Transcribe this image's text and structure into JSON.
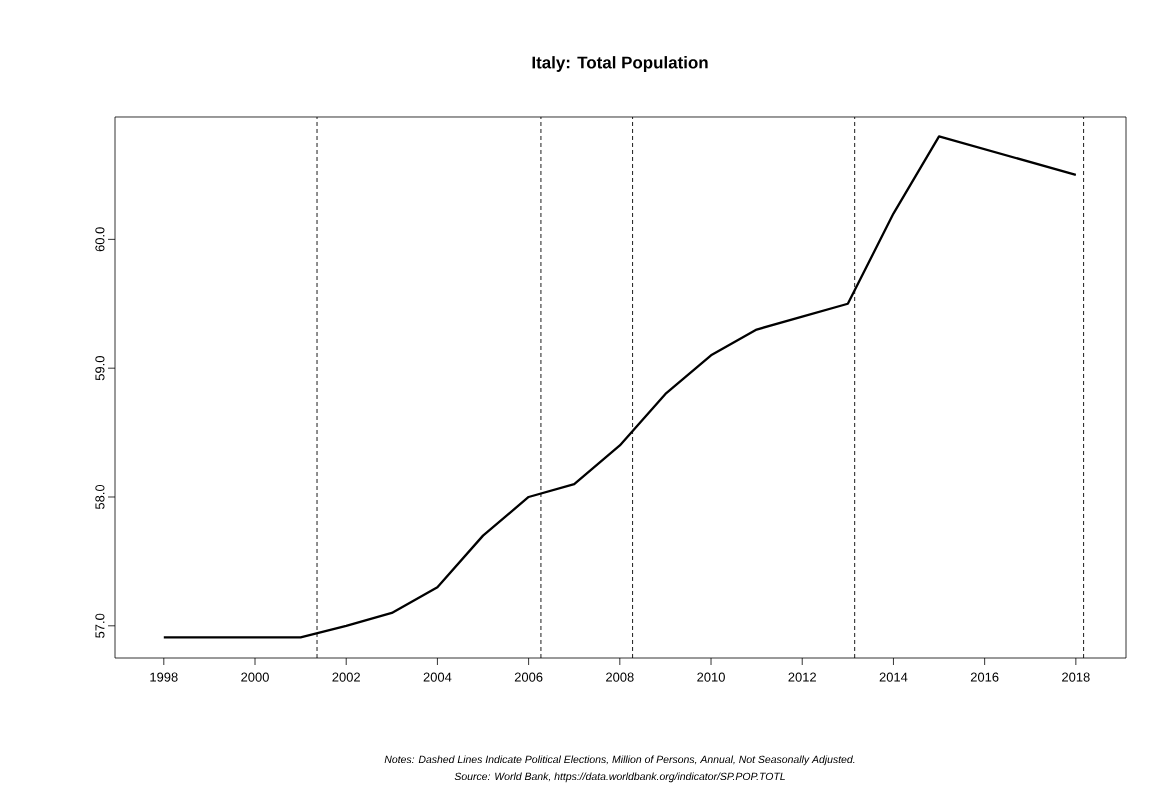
{
  "chart_data": {
    "type": "line",
    "title": "Italy: Total Population",
    "x": [
      1998,
      1999,
      2000,
      2001,
      2002,
      2003,
      2004,
      2005,
      2006,
      2007,
      2008,
      2009,
      2010,
      2011,
      2012,
      2013,
      2014,
      2015,
      2018
    ],
    "values": [
      56.91,
      56.91,
      56.91,
      56.91,
      57.0,
      57.1,
      57.3,
      57.7,
      58.0,
      58.1,
      58.4,
      58.8,
      59.1,
      59.3,
      59.4,
      59.5,
      60.2,
      60.8,
      60.5
    ],
    "color": "#000000",
    "xlim": [
      1996.93,
      2019.1
    ],
    "ylim": [
      56.75,
      60.95
    ],
    "xticks": [
      1998,
      2000,
      2002,
      2004,
      2006,
      2008,
      2010,
      2012,
      2014,
      2016,
      2018
    ],
    "yticks": [
      {
        "value": 57,
        "label": "57.0"
      },
      {
        "value": 58,
        "label": "58.0"
      },
      {
        "value": 59,
        "label": "59.0"
      },
      {
        "value": 60,
        "label": "60.0"
      }
    ],
    "ref_lines": [
      {
        "axis": "x",
        "value": 2001.36,
        "line_style": "dashed"
      },
      {
        "axis": "x",
        "value": 2006.27,
        "line_style": "dashed"
      },
      {
        "axis": "x",
        "value": 2008.28,
        "line_style": "dashed"
      },
      {
        "axis": "x",
        "value": 2013.15,
        "line_style": "dashed"
      },
      {
        "axis": "x",
        "value": 2018.17,
        "line_style": "dashed"
      }
    ],
    "annotations": [
      "Notes: Dashed Lines Indicate Political Elections, Million of Persons, Annual, Not Seasonally Adjusted.",
      "Source: World Bank, https://data.worldbank.org/indicator/SP.POP.TOTL"
    ],
    "grid": false,
    "marker": "none",
    "line_style": "solid"
  }
}
